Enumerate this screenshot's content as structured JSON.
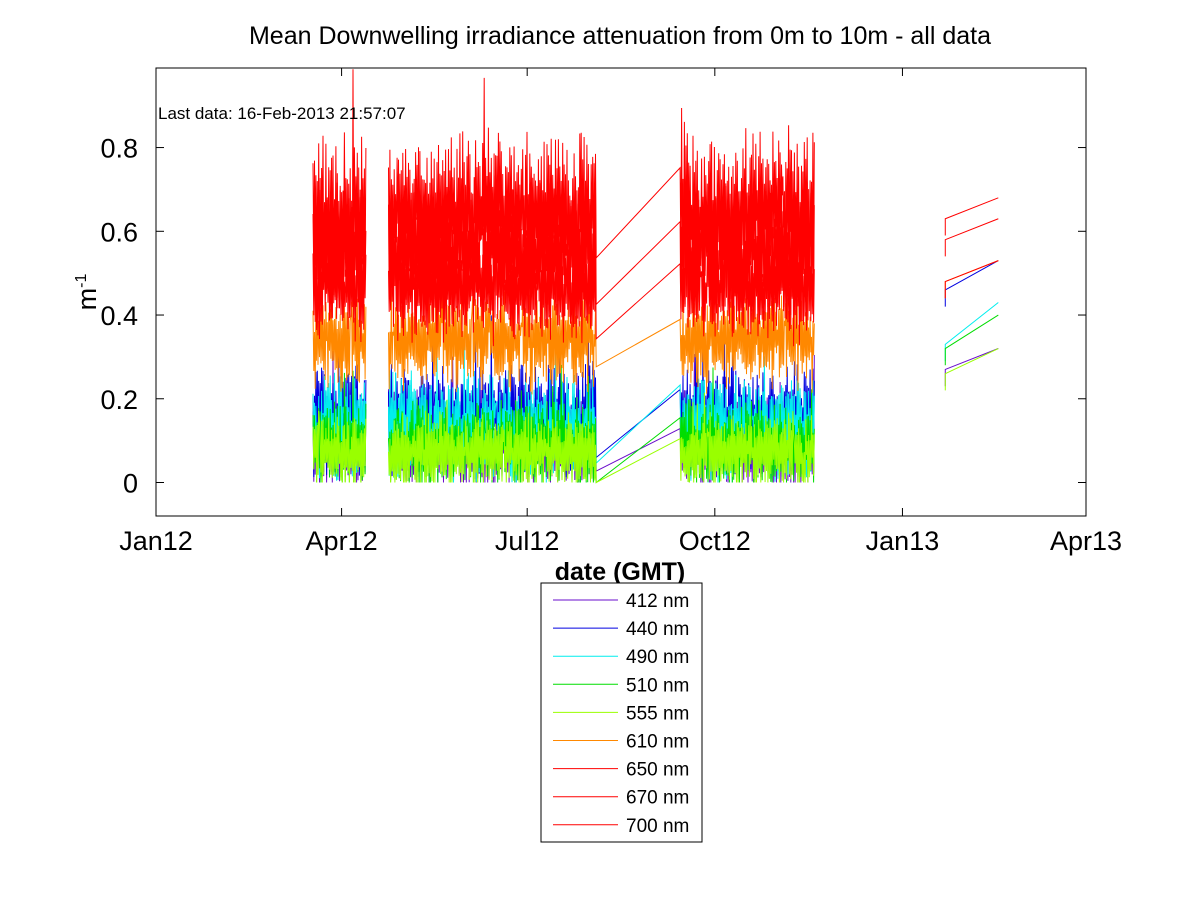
{
  "chart_data": {
    "type": "line",
    "title": "Mean Downwelling irradiance attenuation from 0m to 10m - all data",
    "xlabel": "date (GMT)",
    "ylabel_base": "m",
    "ylabel_exp": "-1",
    "annotation": "Last data: 16-Feb-2013 21:57:07",
    "x_unit": "days since 01-Jan-2012",
    "xlim": [
      0,
      456
    ],
    "ylim": [
      -0.08,
      0.99
    ],
    "xticks": [
      {
        "value": 0,
        "label": "Jan12"
      },
      {
        "value": 91,
        "label": "Apr12"
      },
      {
        "value": 182,
        "label": "Jul12"
      },
      {
        "value": 274,
        "label": "Oct12"
      },
      {
        "value": 366,
        "label": "Jan13"
      },
      {
        "value": 456,
        "label": "Apr13"
      }
    ],
    "yticks": [
      {
        "value": 0,
        "label": "0"
      },
      {
        "value": 0.2,
        "label": "0.2"
      },
      {
        "value": 0.4,
        "label": "0.4"
      },
      {
        "value": 0.6,
        "label": "0.6"
      },
      {
        "value": 0.8,
        "label": "0.8"
      }
    ],
    "grid": false,
    "legend_position": "below",
    "blocks": [
      {
        "segments": [
          [
            77,
            103
          ]
        ]
      },
      {
        "segments": [
          [
            114,
            216
          ],
          [
            257,
            323
          ]
        ]
      },
      {
        "endpoints": [
          387,
          413
        ]
      }
    ],
    "series": [
      {
        "name": "412 nm",
        "color": "#6a0dcc",
        "mean": 0.1,
        "amp": 0.09,
        "feb": [
          0.27,
          0.32
        ]
      },
      {
        "name": "440 nm",
        "color": "#0000e0",
        "mean": 0.15,
        "amp": 0.1,
        "feb": [
          0.46,
          0.53
        ]
      },
      {
        "name": "490 nm",
        "color": "#00eeee",
        "mean": 0.13,
        "amp": 0.1,
        "feb": [
          0.33,
          0.43
        ]
      },
      {
        "name": "510 nm",
        "color": "#00dd00",
        "mean": 0.09,
        "amp": 0.08,
        "feb": [
          0.32,
          0.4
        ]
      },
      {
        "name": "555 nm",
        "color": "#99ff00",
        "mean": 0.07,
        "amp": 0.07,
        "feb": [
          0.26,
          0.32
        ]
      },
      {
        "name": "610 nm",
        "color": "#ff8800",
        "mean": 0.34,
        "amp": 0.09,
        "feb": [
          0.48,
          0.53
        ]
      },
      {
        "name": "650 nm",
        "color": "#ff0000",
        "mean": 0.47,
        "amp": 0.1,
        "feb": [
          0.48,
          0.53
        ]
      },
      {
        "name": "670 nm",
        "color": "#ff0000",
        "mean": 0.55,
        "amp": 0.13,
        "feb": [
          0.58,
          0.63
        ]
      },
      {
        "name": "700 nm",
        "color": "#ff0000",
        "mean": 0.64,
        "amp": 0.15,
        "feb": [
          0.63,
          0.68
        ]
      }
    ]
  }
}
